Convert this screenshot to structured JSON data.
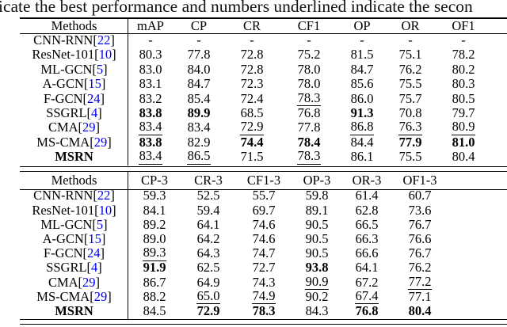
{
  "caption": "icate the best performance and numbers underlined indicate the secon",
  "colors": {
    "background": "#ffffff",
    "text": "#000000",
    "citation_blue": "#0000ee"
  },
  "legend": {
    "bold_means": "best performance",
    "underline_means": "second best performance"
  },
  "tables": [
    {
      "headers": [
        "Methods",
        "mAP",
        "CP",
        "CR",
        "CF1",
        "OP",
        "OR",
        "OF1"
      ],
      "rows": [
        {
          "method": {
            "name": "CNN-RNN",
            "ref": "22",
            "bold": false
          },
          "values": [
            "-",
            "-",
            "-",
            "-",
            "-",
            "-",
            "-"
          ]
        },
        {
          "method": {
            "name": "ResNet-101",
            "ref": "10",
            "bold": false
          },
          "values": [
            "80.3",
            "77.8",
            "72.8",
            "75.2",
            "81.5",
            "75.1",
            "78.2"
          ]
        },
        {
          "method": {
            "name": "ML-GCN",
            "ref": "5",
            "bold": false
          },
          "values": [
            "83.0",
            "84.0",
            "72.8",
            "78.0",
            "84.7",
            "76.2",
            "80.2"
          ]
        },
        {
          "method": {
            "name": "A-GCN",
            "ref": "15",
            "bold": false
          },
          "values": [
            "83.1",
            "84.7",
            "72.3",
            "78.0",
            "85.6",
            "75.5",
            "80.3"
          ]
        },
        {
          "method": {
            "name": "F-GCN",
            "ref": "24",
            "bold": false
          },
          "values": [
            "83.2",
            "85.4",
            "72.4",
            "78.3|u",
            "86.0",
            "75.7",
            "80.5"
          ]
        },
        {
          "method": {
            "name": "SSGRL",
            "ref": "4",
            "bold": false
          },
          "values": [
            "83.8|b",
            "89.9|b",
            "68.5",
            "76.8",
            "91.3|b",
            "70.8",
            "79.7"
          ]
        },
        {
          "method": {
            "name": "CMA",
            "ref": "29",
            "bold": false
          },
          "values": [
            "83.4|u",
            "83.4",
            "72.9|u",
            "77.8",
            "86.8|u",
            "76.3|u",
            "80.9|u"
          ]
        },
        {
          "method": {
            "name": "MS-CMA",
            "ref": "29",
            "bold": false
          },
          "values": [
            "83.8|b",
            "82.9",
            "74.4|b",
            "78.4|b",
            "84.4",
            "77.9|b",
            "81.0|b"
          ]
        },
        {
          "method": {
            "name": "MSRN",
            "ref": null,
            "bold": true
          },
          "values": [
            "83.4|u",
            "86.5|u",
            "71.5",
            "78.3|u",
            "86.1",
            "75.5",
            "80.4"
          ]
        }
      ]
    },
    {
      "headers": [
        "Methods",
        "CP-3",
        "CR-3",
        "CF1-3",
        "OP-3",
        "OR-3",
        "OF1-3"
      ],
      "rows": [
        {
          "method": {
            "name": "CNN-RNN",
            "ref": "22",
            "bold": false
          },
          "values": [
            "59.3",
            "52.5",
            "55.7",
            "59.8",
            "61.4",
            "60.7"
          ]
        },
        {
          "method": {
            "name": "ResNet-101",
            "ref": "10",
            "bold": false
          },
          "values": [
            "84.1",
            "59.4",
            "69.7",
            "89.1",
            "62.8",
            "73.6"
          ]
        },
        {
          "method": {
            "name": "ML-GCN",
            "ref": "5",
            "bold": false
          },
          "values": [
            "89.2",
            "64.1",
            "74.6",
            "90.5",
            "66.5",
            "76.7"
          ]
        },
        {
          "method": {
            "name": "A-GCN",
            "ref": "15",
            "bold": false
          },
          "values": [
            "89.0",
            "64.2",
            "74.6",
            "90.5",
            "66.3",
            "76.6"
          ]
        },
        {
          "method": {
            "name": "F-GCN",
            "ref": "24",
            "bold": false
          },
          "values": [
            "89.3|u",
            "64.3",
            "74.7",
            "90.5",
            "66.6",
            "76.7"
          ]
        },
        {
          "method": {
            "name": "SSGRL",
            "ref": "4",
            "bold": false
          },
          "values": [
            "91.9|b",
            "62.5",
            "72.7",
            "93.8|b",
            "64.1",
            "76.2"
          ]
        },
        {
          "method": {
            "name": "CMA",
            "ref": "29",
            "bold": false
          },
          "values": [
            "86.7",
            "64.9",
            "74.3",
            "90.9|u",
            "67.2",
            "77.2|u"
          ]
        },
        {
          "method": {
            "name": "MS-CMA",
            "ref": "29",
            "bold": false
          },
          "values": [
            "88.2",
            "65.0|u",
            "74.9|u",
            "90.2",
            "67.4|u",
            "77.1"
          ]
        },
        {
          "method": {
            "name": "MSRN",
            "ref": null,
            "bold": true
          },
          "values": [
            "84.5",
            "72.9|b",
            "78.3|b",
            "84.3",
            "76.8|b",
            "80.4|b"
          ]
        }
      ]
    }
  ]
}
